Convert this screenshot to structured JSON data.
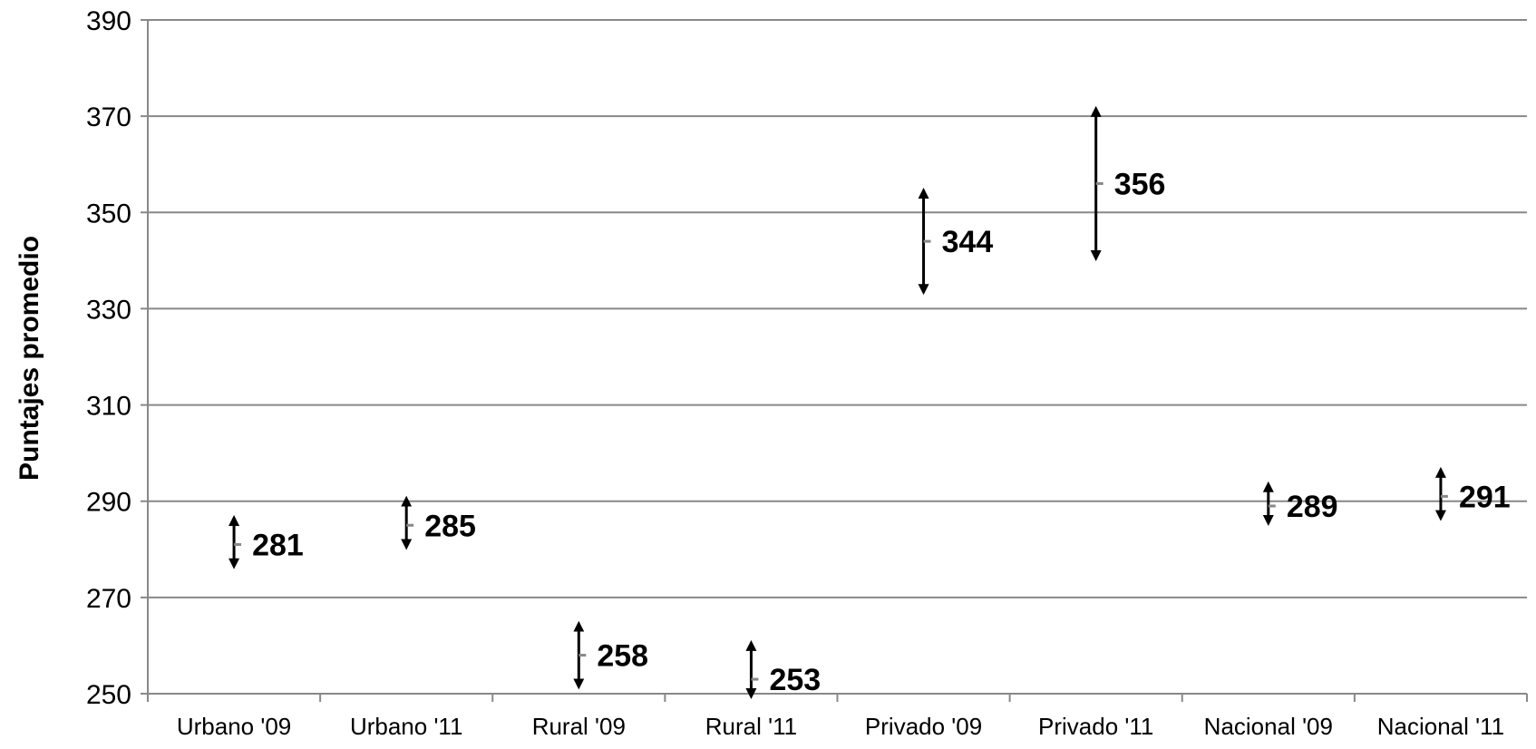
{
  "chart_data": {
    "type": "scatter",
    "title": "",
    "xlabel": "",
    "ylabel": "Puntajes promedio",
    "ylim": [
      250,
      390
    ],
    "yticks": [
      250,
      270,
      290,
      310,
      330,
      350,
      370,
      390
    ],
    "grid": true,
    "legend": "none",
    "categories": [
      "Urbano '09",
      "Urbano '11",
      "Rural '09",
      "Rural '11",
      "Privado '09",
      "Privado '11",
      "Nacional '09",
      "Nacional '11"
    ],
    "series": [
      {
        "values": [
          281,
          285,
          258,
          253,
          344,
          356,
          289,
          291
        ],
        "lower": [
          277,
          281,
          252,
          250,
          334,
          341,
          286,
          287
        ],
        "upper": [
          286,
          290,
          264,
          260,
          354,
          371,
          293,
          296
        ],
        "labels": [
          "281",
          "285",
          "258",
          "253",
          "344",
          "356",
          "289",
          "291"
        ]
      }
    ],
    "colors": {
      "grid": "#888888",
      "axis": "#888888",
      "interval": "#000000",
      "point": "#888888"
    }
  }
}
